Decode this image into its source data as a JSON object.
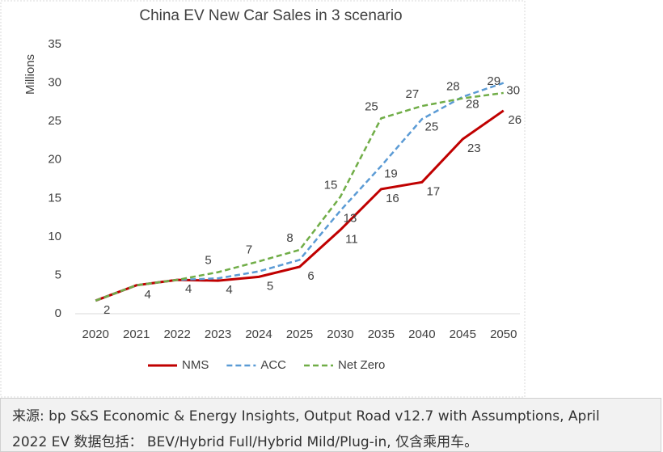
{
  "chart_data": {
    "type": "line",
    "title": "China EV New Car Sales in 3 scenario",
    "y_label": "Millions",
    "categories": [
      "2020",
      "2021",
      "2022",
      "2023",
      "2024",
      "2025",
      "2030",
      "2035",
      "2040",
      "2045",
      "2050"
    ],
    "ylim": [
      0,
      35
    ],
    "yticks": [
      0,
      5,
      10,
      15,
      20,
      25,
      30,
      35
    ],
    "grid": false,
    "legend": "bottom",
    "series": [
      {
        "name": "NMS",
        "color": "#c00000",
        "dash": "solid",
        "values": [
          1.7,
          3.7,
          4.4,
          4.3,
          4.8,
          6.1,
          10.9,
          16.2,
          17.1,
          22.7,
          26.4
        ],
        "value_labels": [
          "2",
          "4",
          "4",
          "4",
          "5",
          "6",
          "11",
          "16",
          "17",
          "23",
          "26"
        ]
      },
      {
        "name": "ACC",
        "color": "#5b9bd5",
        "dash": "dashed",
        "values": [
          1.7,
          3.7,
          4.4,
          4.6,
          5.5,
          7.0,
          13.4,
          19.2,
          25.3,
          28.2,
          30.0
        ],
        "value_labels": [
          null,
          null,
          null,
          null,
          null,
          null,
          "13",
          "19",
          "25",
          "28",
          "30"
        ]
      },
      {
        "name": "Net Zero",
        "color": "#70ad47",
        "dash": "dashed",
        "values": [
          1.7,
          3.7,
          4.4,
          5.4,
          6.8,
          8.3,
          15.2,
          25.4,
          27.0,
          28.0,
          28.7
        ],
        "value_labels": [
          null,
          null,
          null,
          "5",
          "7",
          "8",
          "15",
          "25",
          "27",
          "28",
          "29"
        ]
      }
    ]
  },
  "footer": [
    "来源: bp S&S Economic & Energy Insights, Output Road v12.7 with Assumptions, April",
    "2022 EV 数据包括： BEV/Hybrid Full/Hybrid Mild/Plug-in, 仅含乘用车。"
  ]
}
